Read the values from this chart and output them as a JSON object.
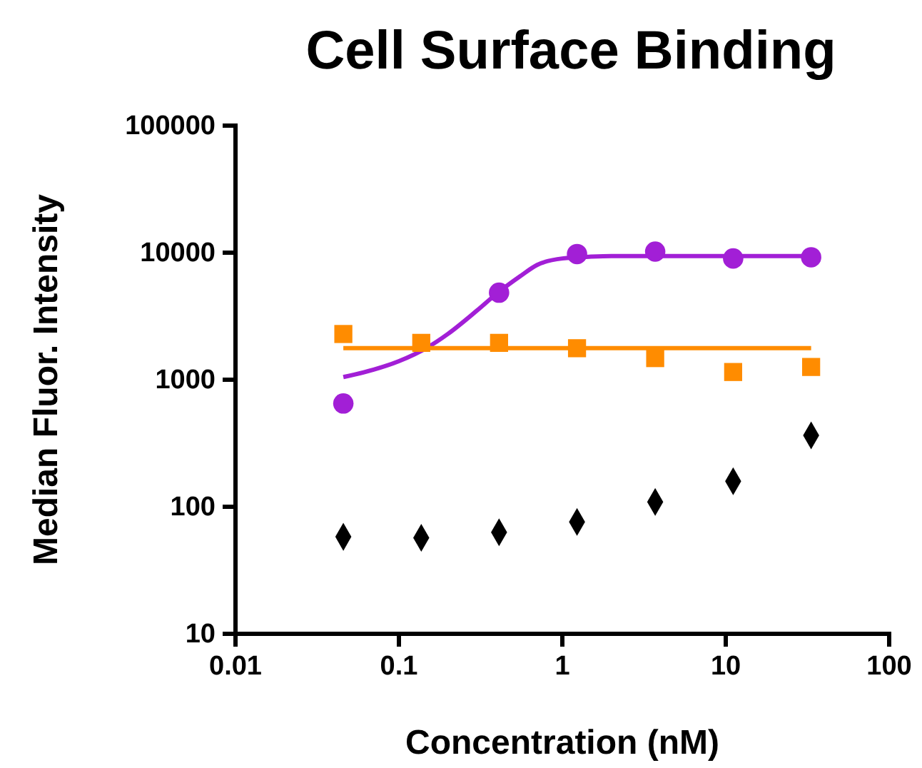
{
  "chart_data": {
    "type": "scatter",
    "title": "Cell Surface Binding",
    "xlabel": "Concentration (nM)",
    "ylabel": "Median Fluor. Intensity",
    "log": "xy",
    "grid": false,
    "xlim": [
      0.01,
      100
    ],
    "xticks": [
      0.01,
      0.1,
      1,
      10,
      100
    ],
    "ylim": [
      10,
      100000
    ],
    "yticks": [
      10,
      100,
      1000,
      10000,
      100000
    ],
    "series": [
      {
        "type": "line",
        "color": "#a21fd6",
        "line_style": "solid",
        "x": [
          0.0457,
          0.07,
          0.1,
          0.15,
          0.2,
          0.3,
          0.4,
          0.55,
          0.7,
          1,
          1.5,
          2,
          5,
          33.3
        ],
        "values": [
          1050,
          1200,
          1400,
          1800,
          2300,
          3500,
          4800,
          6500,
          8000,
          9000,
          9300,
          9400,
          9400,
          9400
        ]
      },
      {
        "type": "line",
        "color": "#ff8c00",
        "line_style": "solid",
        "x": [
          0.0457,
          33.3
        ],
        "values": [
          1770,
          1770
        ]
      },
      {
        "color": "#a21fd6",
        "marker": "circle",
        "x": [
          0.0457,
          0.41,
          1.23,
          3.7,
          11.1,
          33.3
        ],
        "values": [
          650,
          4840,
          9750,
          10200,
          9000,
          9200
        ]
      },
      {
        "color": "#ff8c00",
        "marker": "square",
        "x": [
          0.0457,
          0.137,
          0.41,
          1.23,
          3.7,
          11.1,
          33.3
        ],
        "values": [
          2290,
          1950,
          1950,
          1770,
          1480,
          1150,
          1260
        ]
      },
      {
        "color": "#000000",
        "marker": "diamond",
        "x": [
          0.0457,
          0.137,
          0.41,
          1.23,
          3.7,
          11.1,
          33.3
        ],
        "values": [
          58,
          57,
          63,
          76,
          109,
          159,
          365
        ]
      }
    ]
  }
}
